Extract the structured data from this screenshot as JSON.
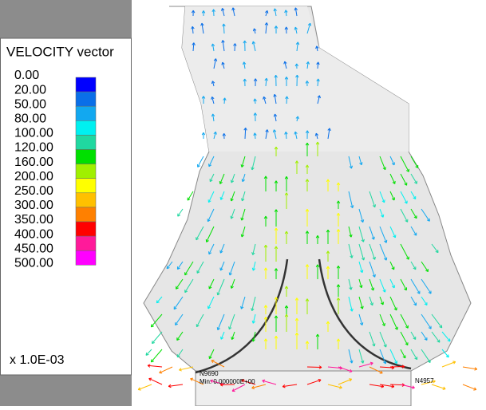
{
  "legend": {
    "title": "VELOCITY vector",
    "levels": [
      {
        "value": 0,
        "label": "0.00"
      },
      {
        "value": 20,
        "label": "20.00"
      },
      {
        "value": 50,
        "label": "50.00"
      },
      {
        "value": 80,
        "label": "80.00"
      },
      {
        "value": 100,
        "label": "100.00"
      },
      {
        "value": 120,
        "label": "120.00"
      },
      {
        "value": 160,
        "label": "160.00"
      },
      {
        "value": 200,
        "label": "200.00"
      },
      {
        "value": 250,
        "label": "250.00"
      },
      {
        "value": 300,
        "label": "300.00"
      },
      {
        "value": 350,
        "label": "350.00"
      },
      {
        "value": 400,
        "label": "400.00"
      },
      {
        "value": 450,
        "label": "450.00"
      },
      {
        "value": 500,
        "label": "500.00"
      }
    ],
    "colors": [
      "#0000ff",
      "#0a6fe8",
      "#12a8f0",
      "#00f0f0",
      "#20d8a0",
      "#00e000",
      "#a0f000",
      "#ffff00",
      "#ffc000",
      "#ff8000",
      "#ff0000",
      "#ff1a9a",
      "#ff00ff"
    ],
    "scale": "x 1.0E-03"
  },
  "annotations": {
    "node_top": "N9690",
    "min": "Min: 0.000000E+00",
    "node_bottom": "N4957"
  }
}
